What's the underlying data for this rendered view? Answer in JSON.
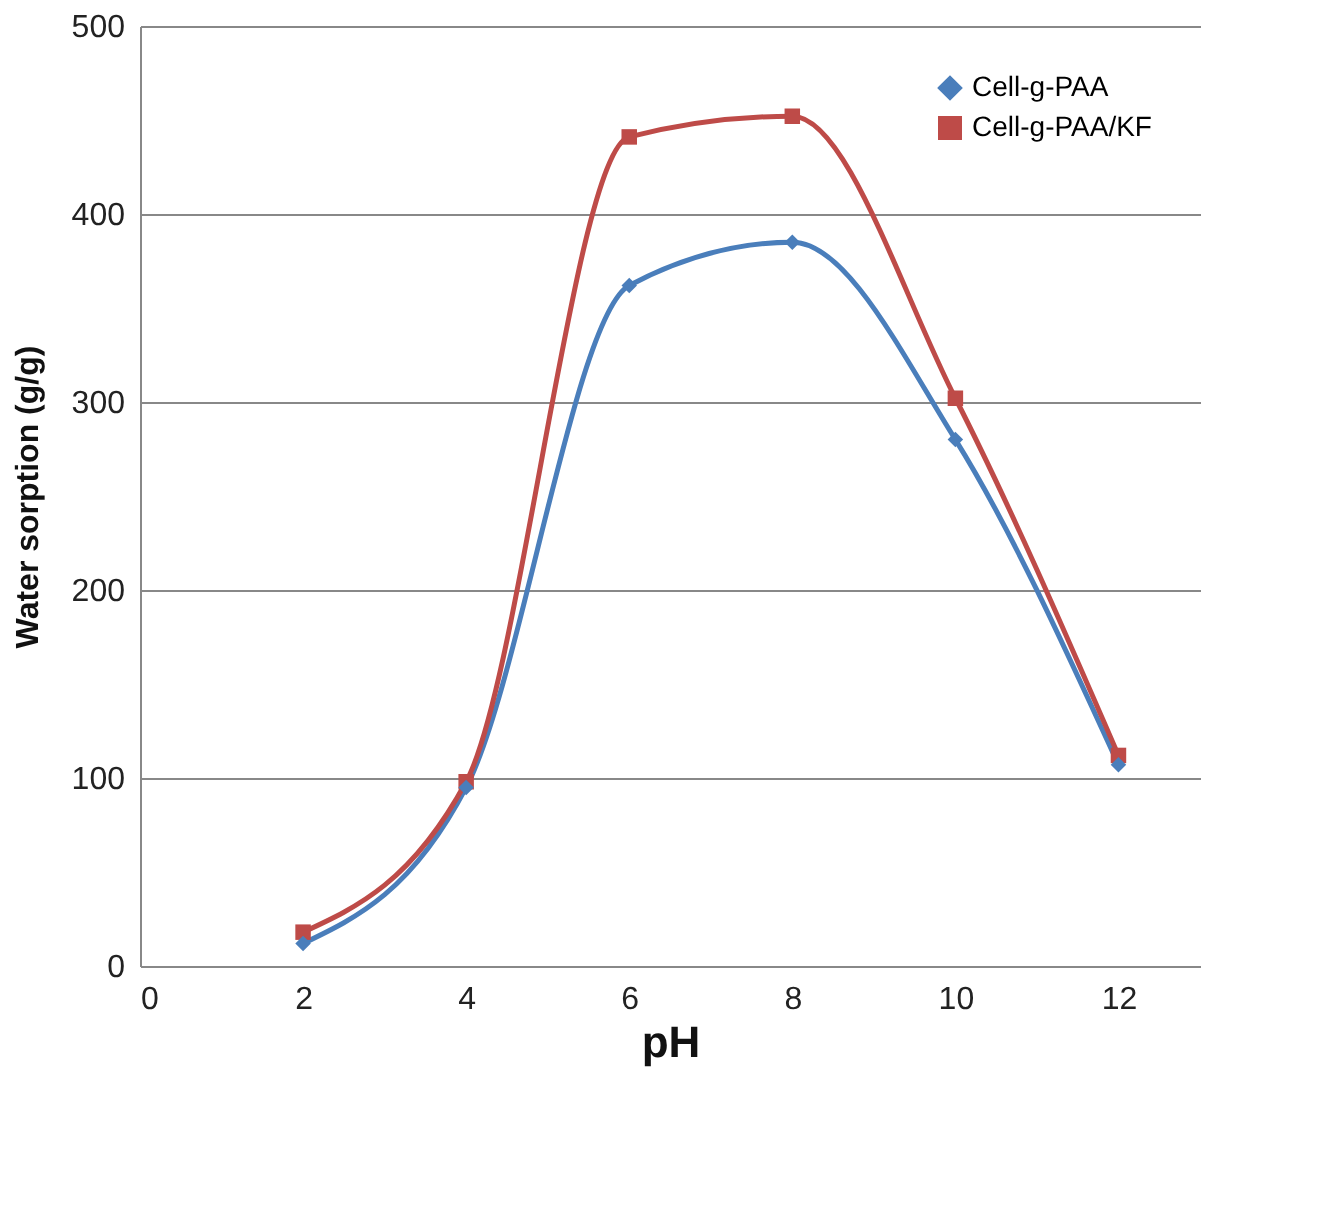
{
  "chart_data": {
    "type": "line",
    "xlabel": "pH",
    "ylabel": "Water sorption (g/g)",
    "x": [
      2,
      4,
      6,
      8,
      10,
      12
    ],
    "series": [
      {
        "name": "Cell-g-PAA",
        "color": "#4a7ebb",
        "marker": "diamond",
        "values": [
          12,
          95,
          362,
          385,
          280,
          107
        ]
      },
      {
        "name": "Cell-g-PAA/KF",
        "color": "#be4b48",
        "marker": "square",
        "values": [
          18,
          98,
          441,
          452,
          302,
          112
        ]
      }
    ],
    "xlim": [
      0,
      13
    ],
    "xticks": [
      0,
      2,
      4,
      6,
      8,
      10,
      12
    ],
    "ylim": [
      0,
      500
    ],
    "yticks": [
      0,
      100,
      200,
      300,
      400,
      500
    ],
    "grid": "y",
    "legend": "top right",
    "line_style": "solid"
  }
}
